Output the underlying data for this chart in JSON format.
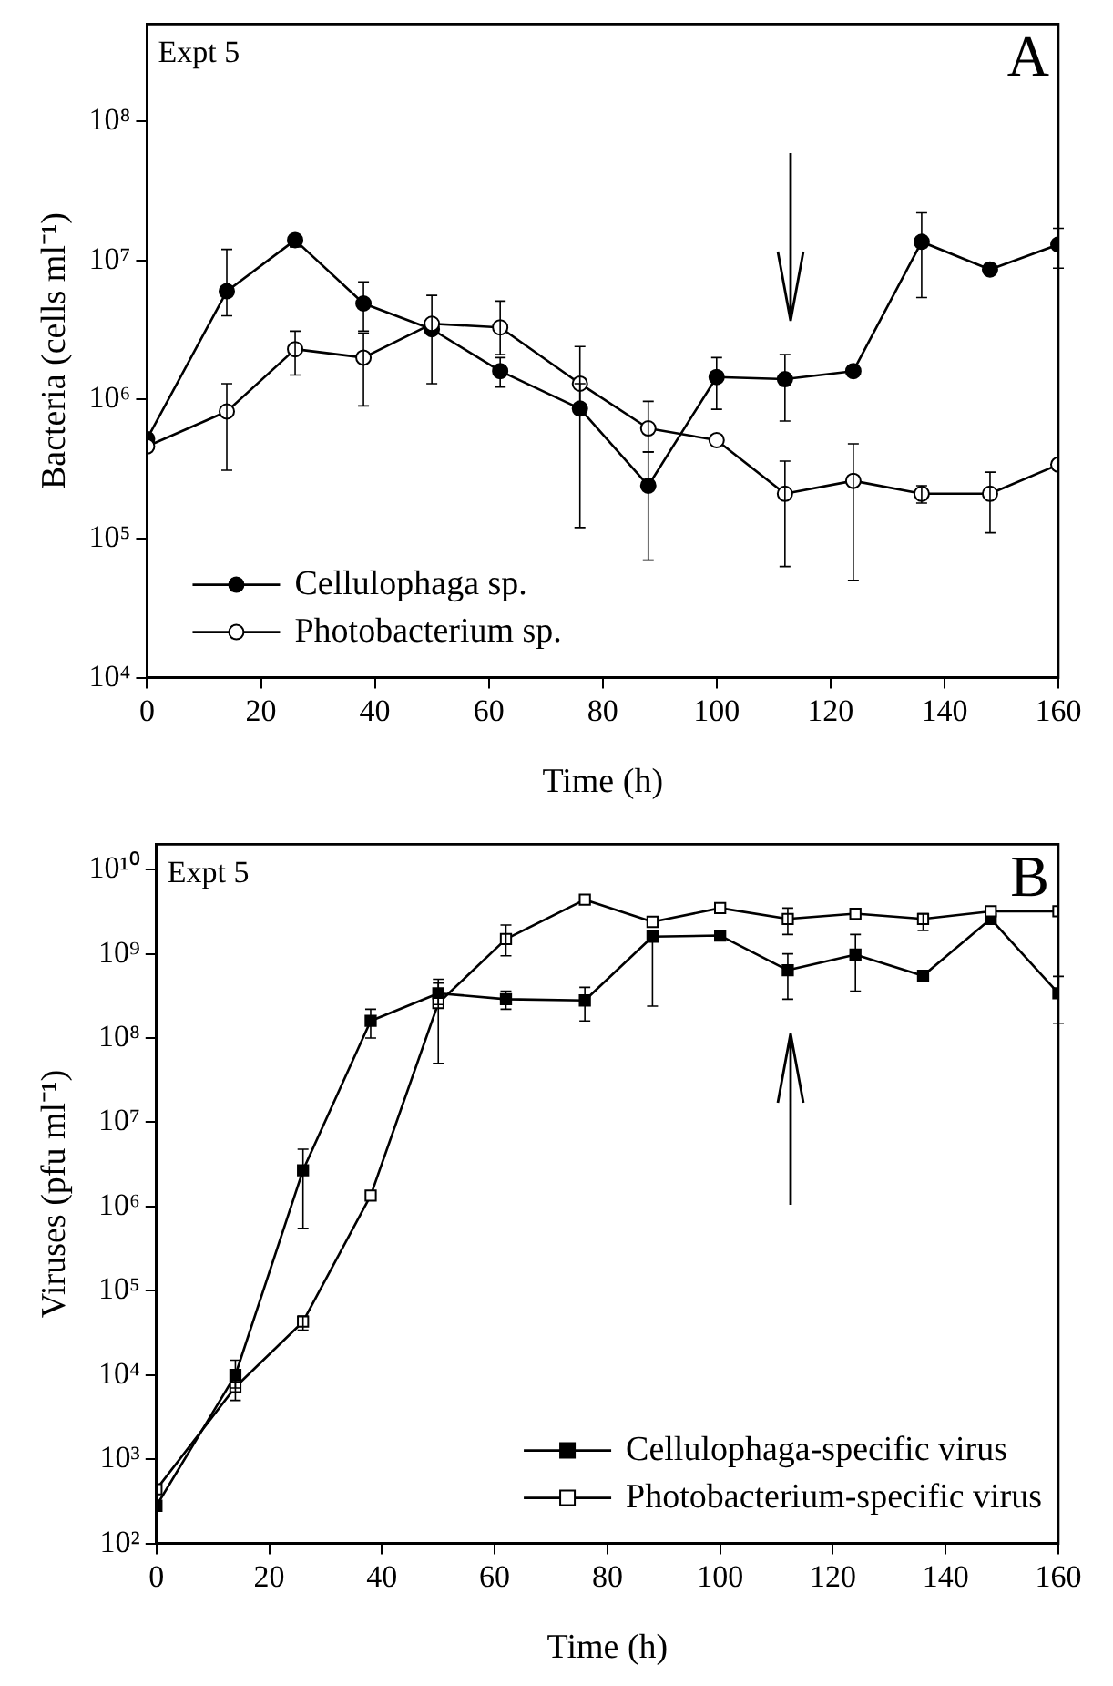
{
  "chart_data": [
    {
      "type": "line",
      "xlabel": "Time (h)",
      "ylabel": "Bacteria (cells ml⁻¹)",
      "annotations": [
        "Expt 5",
        "A"
      ],
      "log": "y",
      "marker": "circle",
      "legend": "bottom left",
      "grid": false,
      "x": [
        0,
        14,
        26,
        38,
        50,
        62,
        76,
        88,
        100,
        112,
        124,
        136,
        148,
        160
      ],
      "xlim": [
        0,
        160
      ],
      "xticks": [
        0,
        20,
        40,
        60,
        80,
        100,
        120,
        140,
        160
      ],
      "ylim": [
        10000,
        500000000
      ],
      "yticks": [
        {
          "value": 10000,
          "label": "10⁴"
        },
        {
          "value": 100000,
          "label": "10⁵"
        },
        {
          "value": 1000000,
          "label": "10⁶"
        },
        {
          "value": 10000000,
          "label": "10⁷"
        },
        {
          "value": 100000000,
          "label": "10⁸"
        }
      ],
      "series": [
        {
          "name": "Cellulophaga sp.",
          "color": "#000000",
          "values": [
            520000,
            6000000,
            14000000,
            4900000,
            3200000,
            1600000,
            860000,
            240000,
            1450000,
            1400000,
            1600000,
            13600000,
            8600000,
            13000000
          ],
          "errors": [
            null,
            [
              4000000,
              12000000
            ],
            [
              12500000,
              15000000
            ],
            [
              3100000,
              7000000
            ],
            null,
            [
              1230000,
              2000000
            ],
            [
              120000,
              1300000
            ],
            [
              70000,
              420000
            ],
            [
              850000,
              2000000
            ],
            [
              700000,
              2100000
            ],
            null,
            [
              5400000,
              22000000
            ],
            null,
            [
              8800000,
              17000000
            ]
          ]
        },
        {
          "name": "Photobacterium sp.",
          "color": "#ffffff",
          "values": [
            460000,
            820000,
            2300000,
            2000000,
            3500000,
            3300000,
            1300000,
            620000,
            510000,
            210000,
            260000,
            210000,
            210000,
            340000
          ],
          "errors": [
            null,
            [
              310000,
              1300000
            ],
            [
              1500000,
              3100000
            ],
            [
              900000,
              3000000
            ],
            [
              1300000,
              5600000
            ],
            [
              2100000,
              5100000
            ],
            [
              900000,
              2400000
            ],
            [
              420000,
              970000
            ],
            null,
            [
              63000,
              360000
            ],
            [
              50000,
              480000
            ],
            [
              180000,
              240000
            ],
            [
              110000,
              300000
            ],
            null
          ]
        }
      ]
    },
    {
      "type": "line",
      "xlabel": "Time (h)",
      "ylabel": "Viruses (pfu ml⁻¹)",
      "annotations": [
        "Expt 5",
        "B"
      ],
      "log": "y",
      "marker": "square",
      "legend": "bottom right",
      "grid": false,
      "x": [
        0,
        14,
        26,
        38,
        50,
        62,
        76,
        88,
        100,
        112,
        124,
        136,
        148,
        160
      ],
      "xlim": [
        0,
        160
      ],
      "xticks": [
        0,
        20,
        40,
        60,
        80,
        100,
        120,
        140,
        160
      ],
      "ylim": [
        100,
        20000000000
      ],
      "yticks": [
        {
          "value": 100,
          "label": "10²"
        },
        {
          "value": 1000,
          "label": "10³"
        },
        {
          "value": 10000,
          "label": "10⁴"
        },
        {
          "value": 100000,
          "label": "10⁵"
        },
        {
          "value": 1000000,
          "label": "10⁶"
        },
        {
          "value": 10000000,
          "label": "10⁷"
        },
        {
          "value": 100000000,
          "label": "10⁸"
        },
        {
          "value": 1000000000,
          "label": "10⁹"
        },
        {
          "value": 10000000000,
          "label": "10¹⁰"
        }
      ],
      "series": [
        {
          "name": "Cellulophaga-specific virus",
          "color": "#000000",
          "values": [
            280,
            10000,
            2700000,
            160000000,
            340000000,
            290000000,
            280000000,
            1600000000,
            1650000000,
            640000000,
            980000000,
            550000000,
            2600000000,
            340000000
          ],
          "errors": [
            null,
            [
              7000,
              15000
            ],
            [
              550000,
              4800000
            ],
            [
              100000000,
              220000000
            ],
            [
              250000000,
              500000000
            ],
            [
              220000000,
              360000000
            ],
            [
              160000000,
              400000000
            ],
            [
              240000000,
              1800000000
            ],
            null,
            [
              290000000,
              1000000000
            ],
            [
              360000000,
              1700000000
            ],
            null,
            null,
            [
              150000000,
              540000000
            ]
          ]
        },
        {
          "name": "Photobacterium-specific virus",
          "color": "#ffffff",
          "values": [
            440,
            7200,
            43000,
            1350000,
            260000000,
            1500000000,
            4400000000,
            2400000000,
            3500000000,
            2600000000,
            3000000000,
            2600000000,
            3200000000,
            3200000000
          ],
          "errors": [
            null,
            [
              5000,
              9000
            ],
            [
              34000,
              50000
            ],
            null,
            [
              50000000,
              450000000
            ],
            [
              950000000,
              2200000000
            ],
            null,
            null,
            null,
            [
              1700000000,
              3500000000
            ],
            null,
            [
              1900000000,
              3000000000
            ],
            null,
            null
          ]
        }
      ]
    }
  ]
}
